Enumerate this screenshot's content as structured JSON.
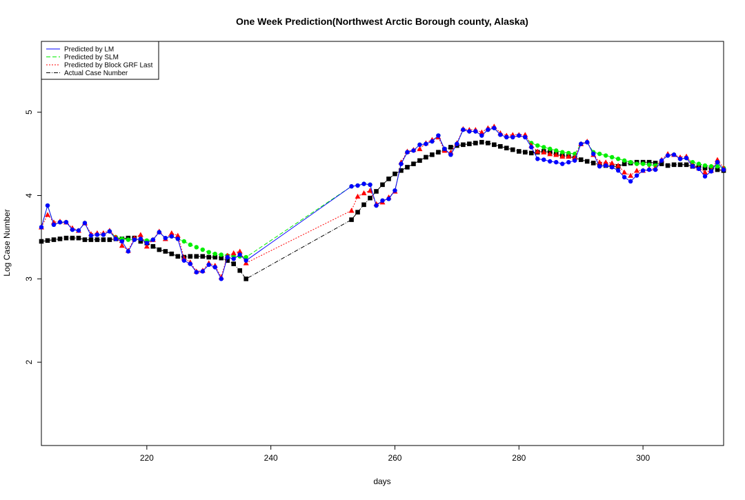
{
  "chart_data": {
    "type": "line",
    "title": "One Week Prediction(Northwest Arctic Borough county, Alaska)",
    "xlabel": "days",
    "ylabel": "Log Case Number",
    "xlim": [
      203,
      313
    ],
    "ylim": [
      1.0,
      5.85
    ],
    "x_ticks": [
      220,
      240,
      260,
      280,
      300
    ],
    "y_ticks": [
      2,
      3,
      4,
      5
    ],
    "grid": false,
    "legend_position": "top-left",
    "legend": [
      {
        "label": "Predicted by LM",
        "color": "#0000ff",
        "dash": "solid"
      },
      {
        "label": "Predicted by SLM",
        "color": "#00ee00",
        "dash": "dashed"
      },
      {
        "label": "Predicted by Block GRF Last",
        "color": "#ff0000",
        "dash": "dotted"
      },
      {
        "label": "Actual Case Number",
        "color": "#000000",
        "dash": "dashdot"
      }
    ],
    "series": [
      {
        "name": "Predicted by LM",
        "color": "#0000ff",
        "marker": "circle",
        "dash": "solid",
        "x": [
          203,
          204,
          205,
          206,
          207,
          208,
          209,
          210,
          211,
          212,
          213,
          214,
          215,
          216,
          217,
          218,
          219,
          220,
          221,
          222,
          223,
          224,
          225,
          226,
          227,
          228,
          229,
          230,
          231,
          232,
          233,
          234,
          235,
          236,
          253,
          254,
          255,
          256,
          257,
          258,
          259,
          260,
          261,
          262,
          263,
          264,
          265,
          266,
          267,
          268,
          269,
          270,
          271,
          272,
          273,
          274,
          275,
          276,
          277,
          278,
          279,
          280,
          281,
          282,
          283,
          284,
          285,
          286,
          287,
          288,
          289,
          290,
          291,
          292,
          293,
          294,
          295,
          296,
          297,
          298,
          299,
          300,
          301,
          302,
          303,
          304,
          305,
          306,
          307,
          308,
          309,
          310,
          311,
          312,
          313
        ],
        "y": [
          3.62,
          3.88,
          3.65,
          3.68,
          3.68,
          3.59,
          3.58,
          3.67,
          3.52,
          3.53,
          3.53,
          3.57,
          3.48,
          3.45,
          3.33,
          3.47,
          3.48,
          3.43,
          3.47,
          3.56,
          3.49,
          3.51,
          3.48,
          3.22,
          3.18,
          3.08,
          3.09,
          3.17,
          3.14,
          3.0,
          3.26,
          3.24,
          3.29,
          3.22,
          4.11,
          4.12,
          4.14,
          4.13,
          3.88,
          3.94,
          3.96,
          4.06,
          4.38,
          4.52,
          4.54,
          4.61,
          4.62,
          4.65,
          4.72,
          4.56,
          4.49,
          4.62,
          4.79,
          4.77,
          4.77,
          4.72,
          4.79,
          4.81,
          4.73,
          4.7,
          4.7,
          4.72,
          4.7,
          4.58,
          4.44,
          4.43,
          4.41,
          4.4,
          4.38,
          4.4,
          4.42,
          4.62,
          4.64,
          4.5,
          4.35,
          4.36,
          4.34,
          4.3,
          4.22,
          4.17,
          4.24,
          4.3,
          4.31,
          4.31,
          4.42,
          4.48,
          4.49,
          4.44,
          4.45,
          4.35,
          4.32,
          4.23,
          4.29,
          4.4,
          4.31
        ]
      },
      {
        "name": "Predicted by SLM",
        "color": "#00ee00",
        "marker": "circle",
        "dash": "dashed",
        "x": [
          203,
          204,
          205,
          206,
          207,
          208,
          209,
          210,
          211,
          212,
          213,
          214,
          215,
          216,
          217,
          218,
          219,
          220,
          221,
          222,
          223,
          224,
          225,
          226,
          227,
          228,
          229,
          230,
          231,
          232,
          233,
          234,
          235,
          236,
          253,
          254,
          255,
          256,
          257,
          258,
          259,
          260,
          261,
          262,
          263,
          264,
          265,
          266,
          267,
          268,
          269,
          270,
          271,
          272,
          273,
          274,
          275,
          276,
          277,
          278,
          279,
          280,
          281,
          282,
          283,
          284,
          285,
          286,
          287,
          288,
          289,
          290,
          291,
          292,
          293,
          294,
          295,
          296,
          297,
          298,
          299,
          300,
          301,
          302,
          303,
          304,
          305,
          306,
          307,
          308,
          309,
          310,
          311,
          312,
          313
        ],
        "y": [
          3.62,
          3.88,
          3.65,
          3.68,
          3.68,
          3.59,
          3.58,
          3.67,
          3.52,
          3.53,
          3.53,
          3.57,
          3.5,
          3.48,
          3.47,
          3.47,
          3.48,
          3.46,
          3.47,
          3.56,
          3.49,
          3.51,
          3.48,
          3.45,
          3.41,
          3.38,
          3.35,
          3.32,
          3.3,
          3.29,
          3.28,
          3.27,
          3.27,
          3.26,
          4.11,
          4.12,
          4.14,
          4.13,
          3.88,
          3.94,
          3.96,
          4.06,
          4.38,
          4.52,
          4.54,
          4.61,
          4.62,
          4.65,
          4.72,
          4.56,
          4.49,
          4.62,
          4.79,
          4.77,
          4.77,
          4.72,
          4.79,
          4.81,
          4.73,
          4.7,
          4.7,
          4.72,
          4.7,
          4.63,
          4.6,
          4.58,
          4.56,
          4.54,
          4.52,
          4.51,
          4.5,
          4.62,
          4.64,
          4.52,
          4.5,
          4.48,
          4.46,
          4.44,
          4.42,
          4.4,
          4.38,
          4.38,
          4.37,
          4.36,
          4.42,
          4.48,
          4.49,
          4.44,
          4.45,
          4.4,
          4.38,
          4.36,
          4.35,
          4.35,
          4.33
        ]
      },
      {
        "name": "Predicted by Block GRF Last",
        "color": "#ff0000",
        "marker": "triangle",
        "dash": "dotted",
        "x": [
          203,
          204,
          205,
          206,
          207,
          208,
          209,
          210,
          211,
          212,
          213,
          214,
          215,
          216,
          217,
          218,
          219,
          220,
          221,
          222,
          223,
          224,
          225,
          226,
          227,
          228,
          229,
          230,
          231,
          232,
          233,
          234,
          235,
          236,
          253,
          254,
          255,
          256,
          257,
          258,
          259,
          260,
          261,
          262,
          263,
          264,
          265,
          266,
          267,
          268,
          269,
          270,
          271,
          272,
          273,
          274,
          275,
          276,
          277,
          278,
          279,
          280,
          281,
          282,
          283,
          284,
          285,
          286,
          287,
          288,
          289,
          290,
          291,
          292,
          293,
          294,
          295,
          296,
          297,
          298,
          299,
          300,
          301,
          302,
          303,
          304,
          305,
          306,
          307,
          308,
          309,
          310,
          311,
          312,
          313
        ],
        "y": [
          3.62,
          3.77,
          3.68,
          3.69,
          3.68,
          3.61,
          3.58,
          3.67,
          3.54,
          3.55,
          3.55,
          3.58,
          3.5,
          3.4,
          3.34,
          3.49,
          3.53,
          3.39,
          3.47,
          3.57,
          3.48,
          3.55,
          3.52,
          3.25,
          3.2,
          3.09,
          3.1,
          3.19,
          3.16,
          3.02,
          3.28,
          3.31,
          3.33,
          3.19,
          3.82,
          3.99,
          4.03,
          4.06,
          3.9,
          3.92,
          3.98,
          4.05,
          4.4,
          4.53,
          4.55,
          4.56,
          4.63,
          4.67,
          4.7,
          4.54,
          4.52,
          4.63,
          4.8,
          4.79,
          4.79,
          4.76,
          4.81,
          4.83,
          4.75,
          4.72,
          4.73,
          4.73,
          4.73,
          4.6,
          4.53,
          4.52,
          4.5,
          4.49,
          4.47,
          4.47,
          4.46,
          4.62,
          4.65,
          4.49,
          4.4,
          4.4,
          4.39,
          4.36,
          4.28,
          4.24,
          4.3,
          4.3,
          4.32,
          4.33,
          4.43,
          4.5,
          4.49,
          4.46,
          4.47,
          4.36,
          4.33,
          4.28,
          4.3,
          4.43,
          4.33
        ]
      },
      {
        "name": "Actual Case Number",
        "color": "#000000",
        "marker": "square",
        "dash": "dashdot",
        "x": [
          203,
          204,
          205,
          206,
          207,
          208,
          209,
          210,
          211,
          212,
          213,
          214,
          215,
          216,
          217,
          218,
          219,
          220,
          221,
          222,
          223,
          224,
          225,
          226,
          227,
          228,
          229,
          230,
          231,
          232,
          233,
          234,
          235,
          236,
          253,
          254,
          255,
          256,
          257,
          258,
          259,
          260,
          261,
          262,
          263,
          264,
          265,
          266,
          267,
          268,
          269,
          270,
          271,
          272,
          273,
          274,
          275,
          276,
          277,
          278,
          279,
          280,
          281,
          282,
          283,
          284,
          285,
          286,
          287,
          288,
          289,
          290,
          291,
          292,
          293,
          294,
          295,
          296,
          297,
          298,
          299,
          300,
          301,
          302,
          303,
          304,
          305,
          306,
          307,
          308,
          309,
          310,
          311,
          312,
          313
        ],
        "y": [
          3.45,
          3.46,
          3.47,
          3.48,
          3.49,
          3.49,
          3.49,
          3.47,
          3.47,
          3.47,
          3.47,
          3.47,
          3.48,
          3.48,
          3.49,
          3.49,
          3.45,
          3.43,
          3.39,
          3.35,
          3.33,
          3.3,
          3.27,
          3.26,
          3.27,
          3.27,
          3.27,
          3.26,
          3.26,
          3.25,
          3.22,
          3.18,
          3.1,
          3.0,
          3.71,
          3.8,
          3.89,
          3.97,
          4.05,
          4.13,
          4.2,
          4.26,
          4.3,
          4.34,
          4.38,
          4.42,
          4.46,
          4.49,
          4.52,
          4.55,
          4.58,
          4.6,
          4.61,
          4.62,
          4.63,
          4.64,
          4.63,
          4.61,
          4.59,
          4.57,
          4.55,
          4.53,
          4.52,
          4.51,
          4.52,
          4.53,
          4.52,
          4.5,
          4.48,
          4.47,
          4.45,
          4.43,
          4.41,
          4.39,
          4.37,
          4.36,
          4.35,
          4.35,
          4.38,
          4.39,
          4.4,
          4.4,
          4.4,
          4.39,
          4.38,
          4.36,
          4.37,
          4.37,
          4.37,
          4.35,
          4.35,
          4.33,
          4.33,
          4.31,
          4.3
        ]
      }
    ]
  }
}
